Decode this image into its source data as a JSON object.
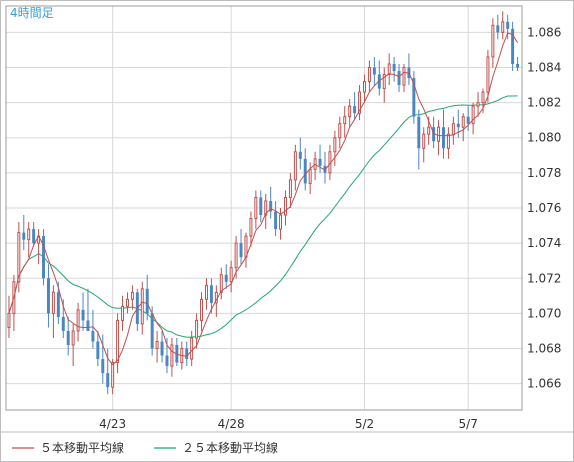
{
  "period_label": "4時間足",
  "legend": [
    {
      "label": "５本移動平均線",
      "color": "#c0504d"
    },
    {
      "label": "２５本移動平均線",
      "color": "#21a870"
    }
  ],
  "colors": {
    "up": "#c0504d",
    "down": "#4a86c0",
    "grid": "#d8d8d8"
  },
  "chart_data": {
    "type": "candlestick",
    "ylim": [
      1.0645,
      1.0875
    ],
    "y_ticks": [
      "1.066",
      "1.068",
      "1.070",
      "1.072",
      "1.074",
      "1.076",
      "1.078",
      "1.080",
      "1.082",
      "1.084",
      "1.086"
    ],
    "x_ticks": [
      {
        "label": "4/23",
        "index": 21
      },
      {
        "label": "4/28",
        "index": 45
      },
      {
        "label": "5/2",
        "index": 72
      },
      {
        "label": "5/7",
        "index": 93
      }
    ],
    "ohlc": [
      [
        1.0692,
        1.071,
        1.0686,
        1.07
      ],
      [
        1.07,
        1.0722,
        1.069,
        1.0718
      ],
      [
        1.0718,
        1.0752,
        1.0712,
        1.0746
      ],
      [
        1.0746,
        1.0756,
        1.0736,
        1.0742
      ],
      [
        1.0742,
        1.0752,
        1.0732,
        1.0748
      ],
      [
        1.0748,
        1.0752,
        1.0738,
        1.074
      ],
      [
        1.074,
        1.0748,
        1.0728,
        1.0744
      ],
      [
        1.0744,
        1.0748,
        1.0716,
        1.072
      ],
      [
        1.072,
        1.0728,
        1.0692,
        1.07
      ],
      [
        1.07,
        1.0716,
        1.0686,
        1.0712
      ],
      [
        1.0712,
        1.0718,
        1.0694,
        1.0698
      ],
      [
        1.0698,
        1.0708,
        1.0686,
        1.069
      ],
      [
        1.069,
        1.0698,
        1.0676,
        1.0682
      ],
      [
        1.0682,
        1.0694,
        1.067,
        1.069
      ],
      [
        1.069,
        1.0706,
        1.0684,
        1.0702
      ],
      [
        1.0702,
        1.0712,
        1.069,
        1.0696
      ],
      [
        1.0696,
        1.0714,
        1.069,
        1.069
      ],
      [
        1.069,
        1.0702,
        1.068,
        1.0684
      ],
      [
        1.0684,
        1.069,
        1.067,
        1.0674
      ],
      [
        1.0674,
        1.0688,
        1.066,
        1.0666
      ],
      [
        1.0666,
        1.068,
        1.0654,
        1.0658
      ],
      [
        1.0658,
        1.0674,
        1.0654,
        1.0672
      ],
      [
        1.0672,
        1.07,
        1.0666,
        1.0696
      ],
      [
        1.0696,
        1.071,
        1.069,
        1.0704
      ],
      [
        1.0704,
        1.0712,
        1.07,
        1.0708
      ],
      [
        1.0708,
        1.0716,
        1.0702,
        1.0712
      ],
      [
        1.0712,
        1.0714,
        1.069,
        1.0694
      ],
      [
        1.0694,
        1.0718,
        1.0688,
        1.0714
      ],
      [
        1.0714,
        1.0722,
        1.0696,
        1.07
      ],
      [
        1.07,
        1.0704,
        1.0676,
        1.068
      ],
      [
        1.068,
        1.069,
        1.0672,
        1.0684
      ],
      [
        1.0684,
        1.069,
        1.0672,
        1.0676
      ],
      [
        1.0676,
        1.0686,
        1.0666,
        1.067
      ],
      [
        1.067,
        1.0686,
        1.0664,
        1.0682
      ],
      [
        1.0682,
        1.0686,
        1.067,
        1.0672
      ],
      [
        1.0672,
        1.0684,
        1.0668,
        1.068
      ],
      [
        1.068,
        1.0684,
        1.067,
        1.0674
      ],
      [
        1.0674,
        1.069,
        1.067,
        1.0686
      ],
      [
        1.0686,
        1.07,
        1.068,
        1.0696
      ],
      [
        1.0696,
        1.0712,
        1.069,
        1.0708
      ],
      [
        1.0708,
        1.072,
        1.0702,
        1.0716
      ],
      [
        1.0716,
        1.072,
        1.07,
        1.0706
      ],
      [
        1.0706,
        1.0716,
        1.0698,
        1.0712
      ],
      [
        1.0712,
        1.0726,
        1.0708,
        1.0722
      ],
      [
        1.0722,
        1.0728,
        1.0714,
        1.0718
      ],
      [
        1.0718,
        1.073,
        1.0712,
        1.0726
      ],
      [
        1.0726,
        1.0744,
        1.072,
        1.074
      ],
      [
        1.074,
        1.0748,
        1.0728,
        1.0732
      ],
      [
        1.0732,
        1.0746,
        1.0726,
        1.0744
      ],
      [
        1.0744,
        1.0758,
        1.0738,
        1.0754
      ],
      [
        1.0754,
        1.077,
        1.0748,
        1.0766
      ],
      [
        1.0766,
        1.077,
        1.0752,
        1.0756
      ],
      [
        1.0756,
        1.0768,
        1.0748,
        1.0764
      ],
      [
        1.0764,
        1.0772,
        1.0754,
        1.0758
      ],
      [
        1.0758,
        1.0764,
        1.0744,
        1.0748
      ],
      [
        1.0748,
        1.076,
        1.0742,
        1.0756
      ],
      [
        1.0756,
        1.077,
        1.075,
        1.0766
      ],
      [
        1.0766,
        1.078,
        1.076,
        1.0776
      ],
      [
        1.0776,
        1.0796,
        1.077,
        1.0792
      ],
      [
        1.0792,
        1.08,
        1.0782,
        1.0788
      ],
      [
        1.0788,
        1.0794,
        1.077,
        1.0774
      ],
      [
        1.0774,
        1.0786,
        1.0768,
        1.0782
      ],
      [
        1.0782,
        1.0792,
        1.0776,
        1.0788
      ],
      [
        1.0788,
        1.0796,
        1.078,
        1.0784
      ],
      [
        1.0784,
        1.0792,
        1.0774,
        1.078
      ],
      [
        1.078,
        1.0796,
        1.0776,
        1.0792
      ],
      [
        1.0792,
        1.0804,
        1.0784,
        1.08
      ],
      [
        1.08,
        1.0812,
        1.0794,
        1.0808
      ],
      [
        1.0808,
        1.0818,
        1.08,
        1.0812
      ],
      [
        1.0812,
        1.0822,
        1.0806,
        1.0818
      ],
      [
        1.0818,
        1.0826,
        1.081,
        1.0814
      ],
      [
        1.0814,
        1.083,
        1.081,
        1.0826
      ],
      [
        1.0826,
        1.0836,
        1.082,
        1.0832
      ],
      [
        1.0832,
        1.0844,
        1.0826,
        1.084
      ],
      [
        1.084,
        1.0846,
        1.083,
        1.0836
      ],
      [
        1.0836,
        1.0844,
        1.0824,
        1.0828
      ],
      [
        1.0828,
        1.084,
        1.082,
        1.0836
      ],
      [
        1.0836,
        1.0848,
        1.083,
        1.0842
      ],
      [
        1.0842,
        1.0846,
        1.0832,
        1.0838
      ],
      [
        1.0838,
        1.0842,
        1.0826,
        1.083
      ],
      [
        1.083,
        1.0842,
        1.0826,
        1.084
      ],
      [
        1.084,
        1.0848,
        1.083,
        1.0834
      ],
      [
        1.0834,
        1.0838,
        1.0808,
        1.0812
      ],
      [
        1.0812,
        1.0816,
        1.0782,
        1.0794
      ],
      [
        1.0794,
        1.0806,
        1.0786,
        1.0802
      ],
      [
        1.0802,
        1.0812,
        1.0796,
        1.0806
      ],
      [
        1.0806,
        1.0812,
        1.0794,
        1.0798
      ],
      [
        1.0798,
        1.081,
        1.079,
        1.0806
      ],
      [
        1.0806,
        1.0816,
        1.0788,
        1.0794
      ],
      [
        1.0794,
        1.0806,
        1.0788,
        1.0802
      ],
      [
        1.0802,
        1.0812,
        1.0796,
        1.0808
      ],
      [
        1.0808,
        1.0816,
        1.08,
        1.0806
      ],
      [
        1.0806,
        1.0814,
        1.0798,
        1.0812
      ],
      [
        1.0812,
        1.0818,
        1.0804,
        1.0808
      ],
      [
        1.0808,
        1.082,
        1.0802,
        1.0818
      ],
      [
        1.0818,
        1.0826,
        1.0812,
        1.082
      ],
      [
        1.082,
        1.0828,
        1.0814,
        1.0826
      ],
      [
        1.0826,
        1.085,
        1.082,
        1.0846
      ],
      [
        1.0846,
        1.0868,
        1.084,
        1.0864
      ],
      [
        1.0864,
        1.087,
        1.0856,
        1.086
      ],
      [
        1.086,
        1.0872,
        1.0856,
        1.0866
      ],
      [
        1.0866,
        1.087,
        1.0856,
        1.0862
      ],
      [
        1.0862,
        1.0866,
        1.0838,
        1.0842
      ],
      [
        1.0842,
        1.0846,
        1.0838,
        1.084
      ]
    ]
  }
}
